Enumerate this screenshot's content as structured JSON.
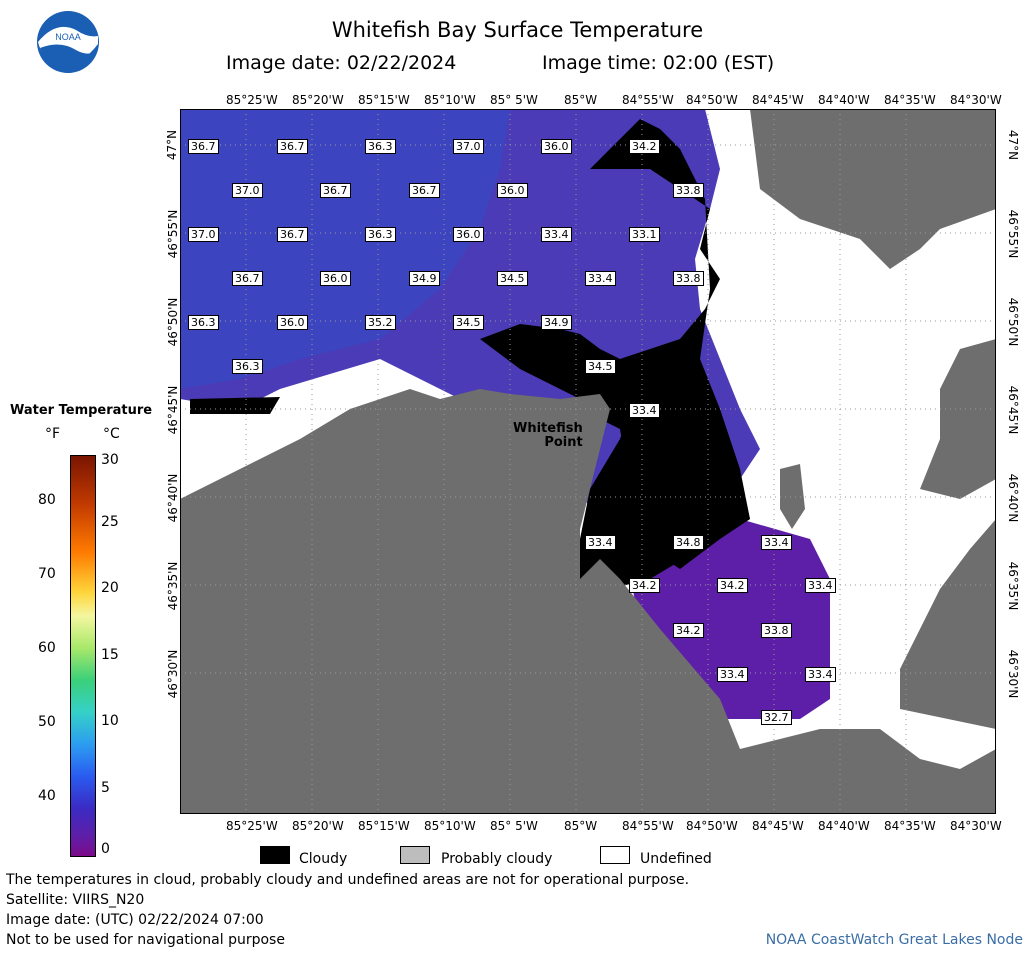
{
  "header": {
    "title": "Whitefish Bay Surface Temperature",
    "image_date_label": "Image date: 02/22/2024",
    "image_time_label": "Image time: 02:00 (EST)",
    "logo_text": "NOAA"
  },
  "map": {
    "lon_ticks": [
      "85°25'W",
      "85°20'W",
      "85°15'W",
      "85°10'W",
      "85° 5'W",
      "85°W",
      "84°55'W",
      "84°50'W",
      "84°45'W",
      "84°40'W",
      "84°35'W",
      "84°30'W"
    ],
    "lat_ticks": [
      "47°N",
      "46°55'N",
      "46°50'N",
      "46°45'N",
      "46°40'N",
      "46°35'N",
      "46°30'N"
    ],
    "place_label_1": "Whitefish",
    "place_label_2": "Point",
    "temp_labels": [
      "36.7",
      "36.7",
      "36.3",
      "37.0",
      "36.0",
      "34.2",
      "37.0",
      "36.7",
      "36.7",
      "36.0",
      "33.8",
      "37.0",
      "36.7",
      "36.3",
      "36.0",
      "33.4",
      "33.1",
      "36.7",
      "36.0",
      "34.9",
      "34.5",
      "33.4",
      "33.8",
      "36.3",
      "36.0",
      "35.2",
      "34.5",
      "34.9",
      "36.3",
      "34.5",
      "33.4",
      "33.4",
      "34.8",
      "33.4",
      "34.2",
      "34.2",
      "33.4",
      "34.2",
      "33.8",
      "33.4",
      "33.4",
      "32.7"
    ],
    "colors": {
      "land": "#6e6e6e",
      "water": "#5a3bb0",
      "cloud": "#000000",
      "undefined": "#ffffff"
    }
  },
  "scale": {
    "title": "Water Temperature",
    "f_unit": "°F",
    "c_unit": "°C",
    "f_ticks": [
      "80",
      "70",
      "60",
      "50",
      "40"
    ],
    "c_ticks": [
      "30",
      "25",
      "20",
      "15",
      "10",
      "5",
      "0"
    ]
  },
  "legend": {
    "cloudy": "Cloudy",
    "probably_cloudy": "Probably cloudy",
    "undefined": "Undefined"
  },
  "footer": {
    "line1": "The temperatures in cloud, probably cloudy and undefined areas are not for operational purpose.",
    "line2": "Satellite: VIIRS_N20",
    "line3": "Image date: (UTC) 02/22/2024  07:00",
    "line4": "Not to be used for navigational purpose",
    "credit": "NOAA CoastWatch Great Lakes Node"
  }
}
